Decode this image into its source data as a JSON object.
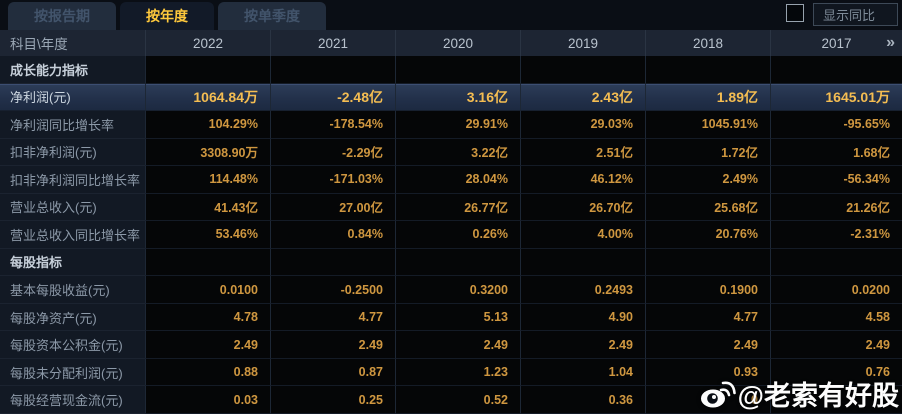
{
  "tabs": [
    {
      "label": "按报告期",
      "active": false
    },
    {
      "label": "按年度",
      "active": true
    },
    {
      "label": "按单季度",
      "active": false
    }
  ],
  "controls": {
    "show_yoy_label": "显示同比",
    "checkbox_checked": false
  },
  "table": {
    "corner_label": "科目\\年度",
    "years": [
      "2022",
      "2021",
      "2020",
      "2019",
      "2018",
      "2017"
    ],
    "more_icon": "»",
    "rows": [
      {
        "type": "section",
        "label": "成长能力指标",
        "values": [
          "",
          "",
          "",
          "",
          "",
          ""
        ]
      },
      {
        "type": "highlight",
        "label": "净利润(元)",
        "values": [
          "1064.84万",
          "-2.48亿",
          "3.16亿",
          "2.43亿",
          "1.89亿",
          "1645.01万"
        ]
      },
      {
        "type": "data",
        "label": "净利润同比增长率",
        "values": [
          "104.29%",
          "-178.54%",
          "29.91%",
          "29.03%",
          "1045.91%",
          "-95.65%"
        ]
      },
      {
        "type": "data",
        "label": "扣非净利润(元)",
        "values": [
          "3308.90万",
          "-2.29亿",
          "3.22亿",
          "2.51亿",
          "1.72亿",
          "1.68亿"
        ]
      },
      {
        "type": "data",
        "label": "扣非净利润同比增长率",
        "values": [
          "114.48%",
          "-171.03%",
          "28.04%",
          "46.12%",
          "2.49%",
          "-56.34%"
        ]
      },
      {
        "type": "data",
        "label": "营业总收入(元)",
        "values": [
          "41.43亿",
          "27.00亿",
          "26.77亿",
          "26.70亿",
          "25.68亿",
          "21.26亿"
        ]
      },
      {
        "type": "data",
        "label": "营业总收入同比增长率",
        "values": [
          "53.46%",
          "0.84%",
          "0.26%",
          "4.00%",
          "20.76%",
          "-2.31%"
        ]
      },
      {
        "type": "section",
        "label": "每股指标",
        "values": [
          "",
          "",
          "",
          "",
          "",
          ""
        ]
      },
      {
        "type": "data",
        "label": "基本每股收益(元)",
        "values": [
          "0.0100",
          "-0.2500",
          "0.3200",
          "0.2493",
          "0.1900",
          "0.0200"
        ]
      },
      {
        "type": "data",
        "label": "每股净资产(元)",
        "values": [
          "4.78",
          "4.77",
          "5.13",
          "4.90",
          "4.77",
          "4.58"
        ]
      },
      {
        "type": "data",
        "label": "每股资本公积金(元)",
        "values": [
          "2.49",
          "2.49",
          "2.49",
          "2.49",
          "2.49",
          "2.49"
        ]
      },
      {
        "type": "data",
        "label": "每股未分配利润(元)",
        "values": [
          "0.88",
          "0.87",
          "1.23",
          "1.04",
          "0.93",
          "0.76"
        ]
      },
      {
        "type": "data",
        "label": "每股经营现金流(元)",
        "values": [
          "0.03",
          "0.25",
          "0.52",
          "0.36",
          "0",
          ""
        ]
      }
    ]
  },
  "watermark": {
    "icon": "weibo-icon",
    "handle": "@老索有好股"
  },
  "colors": {
    "background": "#0a0e15",
    "header_bg": "#1d2533",
    "value_gold": "#cf9740",
    "highlight_gold": "#f4bd52",
    "highlight_row_bg": "#22304a",
    "active_tab_text": "#ffc93c",
    "watermark_text": "#fdfdfd"
  }
}
